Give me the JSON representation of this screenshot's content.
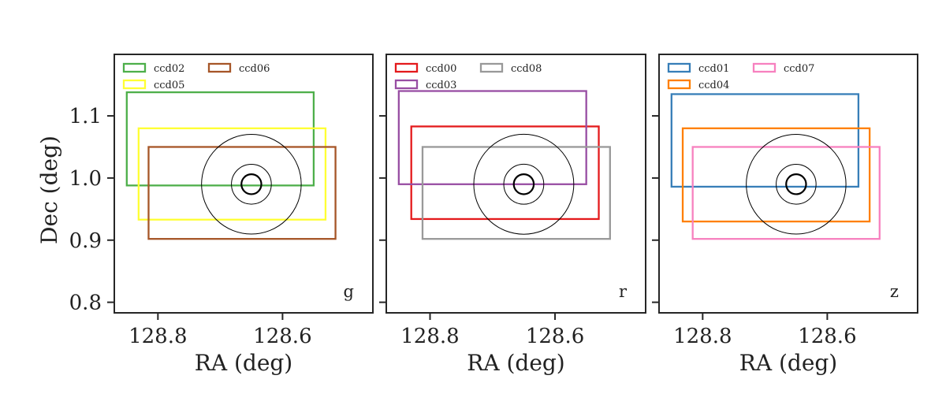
{
  "chart_data": [
    {
      "type": "rectangles",
      "band": "g",
      "xlabel": "RA (deg)",
      "ylabel": "Dec (deg)",
      "x_ticks": [
        "128.8",
        "128.6"
      ],
      "y_ticks": [
        "1.1",
        "1.0",
        "0.9",
        "0.8"
      ],
      "xlim": [
        128.87,
        128.455
      ],
      "ylim": [
        0.783,
        1.199
      ],
      "legend": "top-left",
      "ccds": [
        {
          "name": "ccd02",
          "color": "#4daf4a",
          "ra": [
            128.85,
            128.55
          ],
          "dec": [
            0.988,
            1.138
          ]
        },
        {
          "name": "ccd05",
          "color": "#ffff33",
          "ra": [
            128.831,
            128.531
          ],
          "dec": [
            0.933,
            1.08
          ]
        },
        {
          "name": "ccd06",
          "color": "#a65628",
          "ra": [
            128.815,
            128.515
          ],
          "dec": [
            0.902,
            1.05
          ]
        }
      ],
      "circles": {
        "center_ra": 128.65,
        "center_dec": 0.99,
        "radii_deg": [
          0.08,
          0.032,
          0.016
        ]
      }
    },
    {
      "type": "rectangles",
      "band": "r",
      "xlabel": "RA (deg)",
      "ylabel": "",
      "x_ticks": [
        "128.8",
        "128.6"
      ],
      "y_ticks": [],
      "xlim": [
        128.87,
        128.455
      ],
      "ylim": [
        0.783,
        1.199
      ],
      "legend": "top-left",
      "ccds": [
        {
          "name": "ccd00",
          "color": "#e41a1c",
          "ra": [
            128.83,
            128.53
          ],
          "dec": [
            0.934,
            1.083
          ]
        },
        {
          "name": "ccd03",
          "color": "#984ea3",
          "ra": [
            128.85,
            128.55
          ],
          "dec": [
            0.99,
            1.14
          ]
        },
        {
          "name": "ccd08",
          "color": "#999999",
          "ra": [
            128.812,
            128.512
          ],
          "dec": [
            0.902,
            1.05
          ]
        }
      ],
      "circles": {
        "center_ra": 128.65,
        "center_dec": 0.99,
        "radii_deg": [
          0.08,
          0.032,
          0.016
        ]
      }
    },
    {
      "type": "rectangles",
      "band": "z",
      "xlabel": "RA (deg)",
      "ylabel": "",
      "x_ticks": [
        "128.8",
        "128.6"
      ],
      "y_ticks": [],
      "xlim": [
        128.87,
        128.455
      ],
      "ylim": [
        0.783,
        1.199
      ],
      "legend": "top-left",
      "ccds": [
        {
          "name": "ccd01",
          "color": "#377eb8",
          "ra": [
            128.85,
            128.55
          ],
          "dec": [
            0.986,
            1.135
          ]
        },
        {
          "name": "ccd04",
          "color": "#ff7f00",
          "ra": [
            128.832,
            128.532
          ],
          "dec": [
            0.93,
            1.08
          ]
        },
        {
          "name": "ccd07",
          "color": "#f781bf",
          "ra": [
            128.816,
            128.516
          ],
          "dec": [
            0.902,
            1.05
          ]
        }
      ],
      "circles": {
        "center_ra": 128.65,
        "center_dec": 0.99,
        "radii_deg": [
          0.08,
          0.032,
          0.016
        ]
      }
    }
  ]
}
